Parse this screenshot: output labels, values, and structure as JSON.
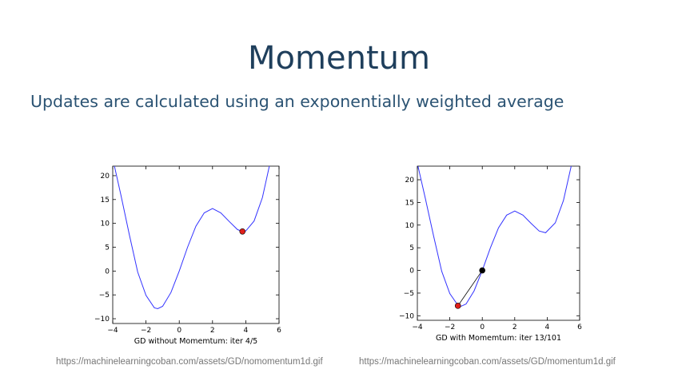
{
  "slide": {
    "title": "Momentum",
    "subtitle": "Updates are calculated using an exponentially weighted average"
  },
  "figures": [
    {
      "caption": "GD without Momemtum: iter 4/5",
      "source": "https://machinelearningcoban.com/assets/GD/nomomentum1d.gif"
    },
    {
      "caption": "GD with Momemtum: iter 13/101",
      "source": "https://machinelearningcoban.com/assets/GD/momentum1d.gif"
    }
  ],
  "colors": {
    "title": "#1f3f5c",
    "subtitle": "#2b5373",
    "curve": "#3333ff",
    "current_point": "#e0201b",
    "previous_point": "#000000",
    "url": "#777777"
  },
  "chart_data": [
    {
      "type": "line",
      "title": "",
      "xlabel": "GD without Momemtum: iter 4/5",
      "ylabel": "",
      "xlim": [
        -4,
        6
      ],
      "ylim": [
        -11,
        22
      ],
      "xticks": [
        -4,
        -2,
        0,
        2,
        4,
        6
      ],
      "xtick_labels": [
        "−4",
        "−2",
        "0",
        "2",
        "4",
        "6"
      ],
      "yticks": [
        -10,
        -5,
        0,
        5,
        10,
        15,
        20
      ],
      "ytick_labels": [
        "−10",
        "−5",
        "0",
        "5",
        "10",
        "15",
        "20"
      ],
      "function": "x^2 + 10*sin(x)",
      "series": [
        {
          "x": [
            -4,
            -3.5,
            -3,
            -2.5,
            -2,
            -1.5,
            -1.3,
            -1,
            -0.5,
            0,
            0.5,
            1,
            1.5,
            2,
            2.5,
            3,
            3.5,
            3.8,
            4,
            4.5,
            5,
            5.5
          ],
          "values": [
            23.6,
            15.8,
            7.6,
            -0.2,
            -5.1,
            -7.7,
            -7.9,
            -7.4,
            -4.5,
            0,
            5.0,
            9.4,
            12.2,
            13.1,
            12.2,
            10.4,
            8.7,
            8.3,
            8.4,
            10.5,
            15.4,
            23.3
          ]
        }
      ],
      "points": [
        {
          "role": "current",
          "x": 3.8,
          "y": 8.3
        }
      ],
      "grid": false,
      "legend": "none"
    },
    {
      "type": "line",
      "title": "",
      "xlabel": "GD with Momemtum: iter 13/101",
      "ylabel": "",
      "xlim": [
        -4,
        6
      ],
      "ylim": [
        -11,
        23
      ],
      "xticks": [
        -4,
        -2,
        0,
        2,
        4,
        6
      ],
      "xtick_labels": [
        "−4",
        "−2",
        "0",
        "2",
        "4",
        "6"
      ],
      "yticks": [
        -10,
        -5,
        0,
        5,
        10,
        15,
        20
      ],
      "ytick_labels": [
        "−10",
        "−5",
        "0",
        "5",
        "10",
        "15",
        "20"
      ],
      "function": "x^2 + 10*sin(x)",
      "series": [
        {
          "x": [
            -4,
            -3.5,
            -3,
            -2.5,
            -2,
            -1.5,
            -1.3,
            -1,
            -0.5,
            0,
            0.5,
            1,
            1.5,
            2,
            2.5,
            3,
            3.5,
            3.9,
            4.5,
            5,
            5.5
          ],
          "values": [
            23.6,
            15.8,
            7.6,
            -0.2,
            -5.1,
            -7.7,
            -7.9,
            -7.4,
            -4.5,
            0,
            5.0,
            9.4,
            12.2,
            13.1,
            12.2,
            10.4,
            8.7,
            8.3,
            10.5,
            15.4,
            23.3
          ]
        }
      ],
      "points": [
        {
          "role": "previous",
          "x": 0,
          "y": 0
        },
        {
          "role": "current",
          "x": -1.5,
          "y": -7.8
        }
      ],
      "grid": false,
      "legend": "none"
    }
  ]
}
